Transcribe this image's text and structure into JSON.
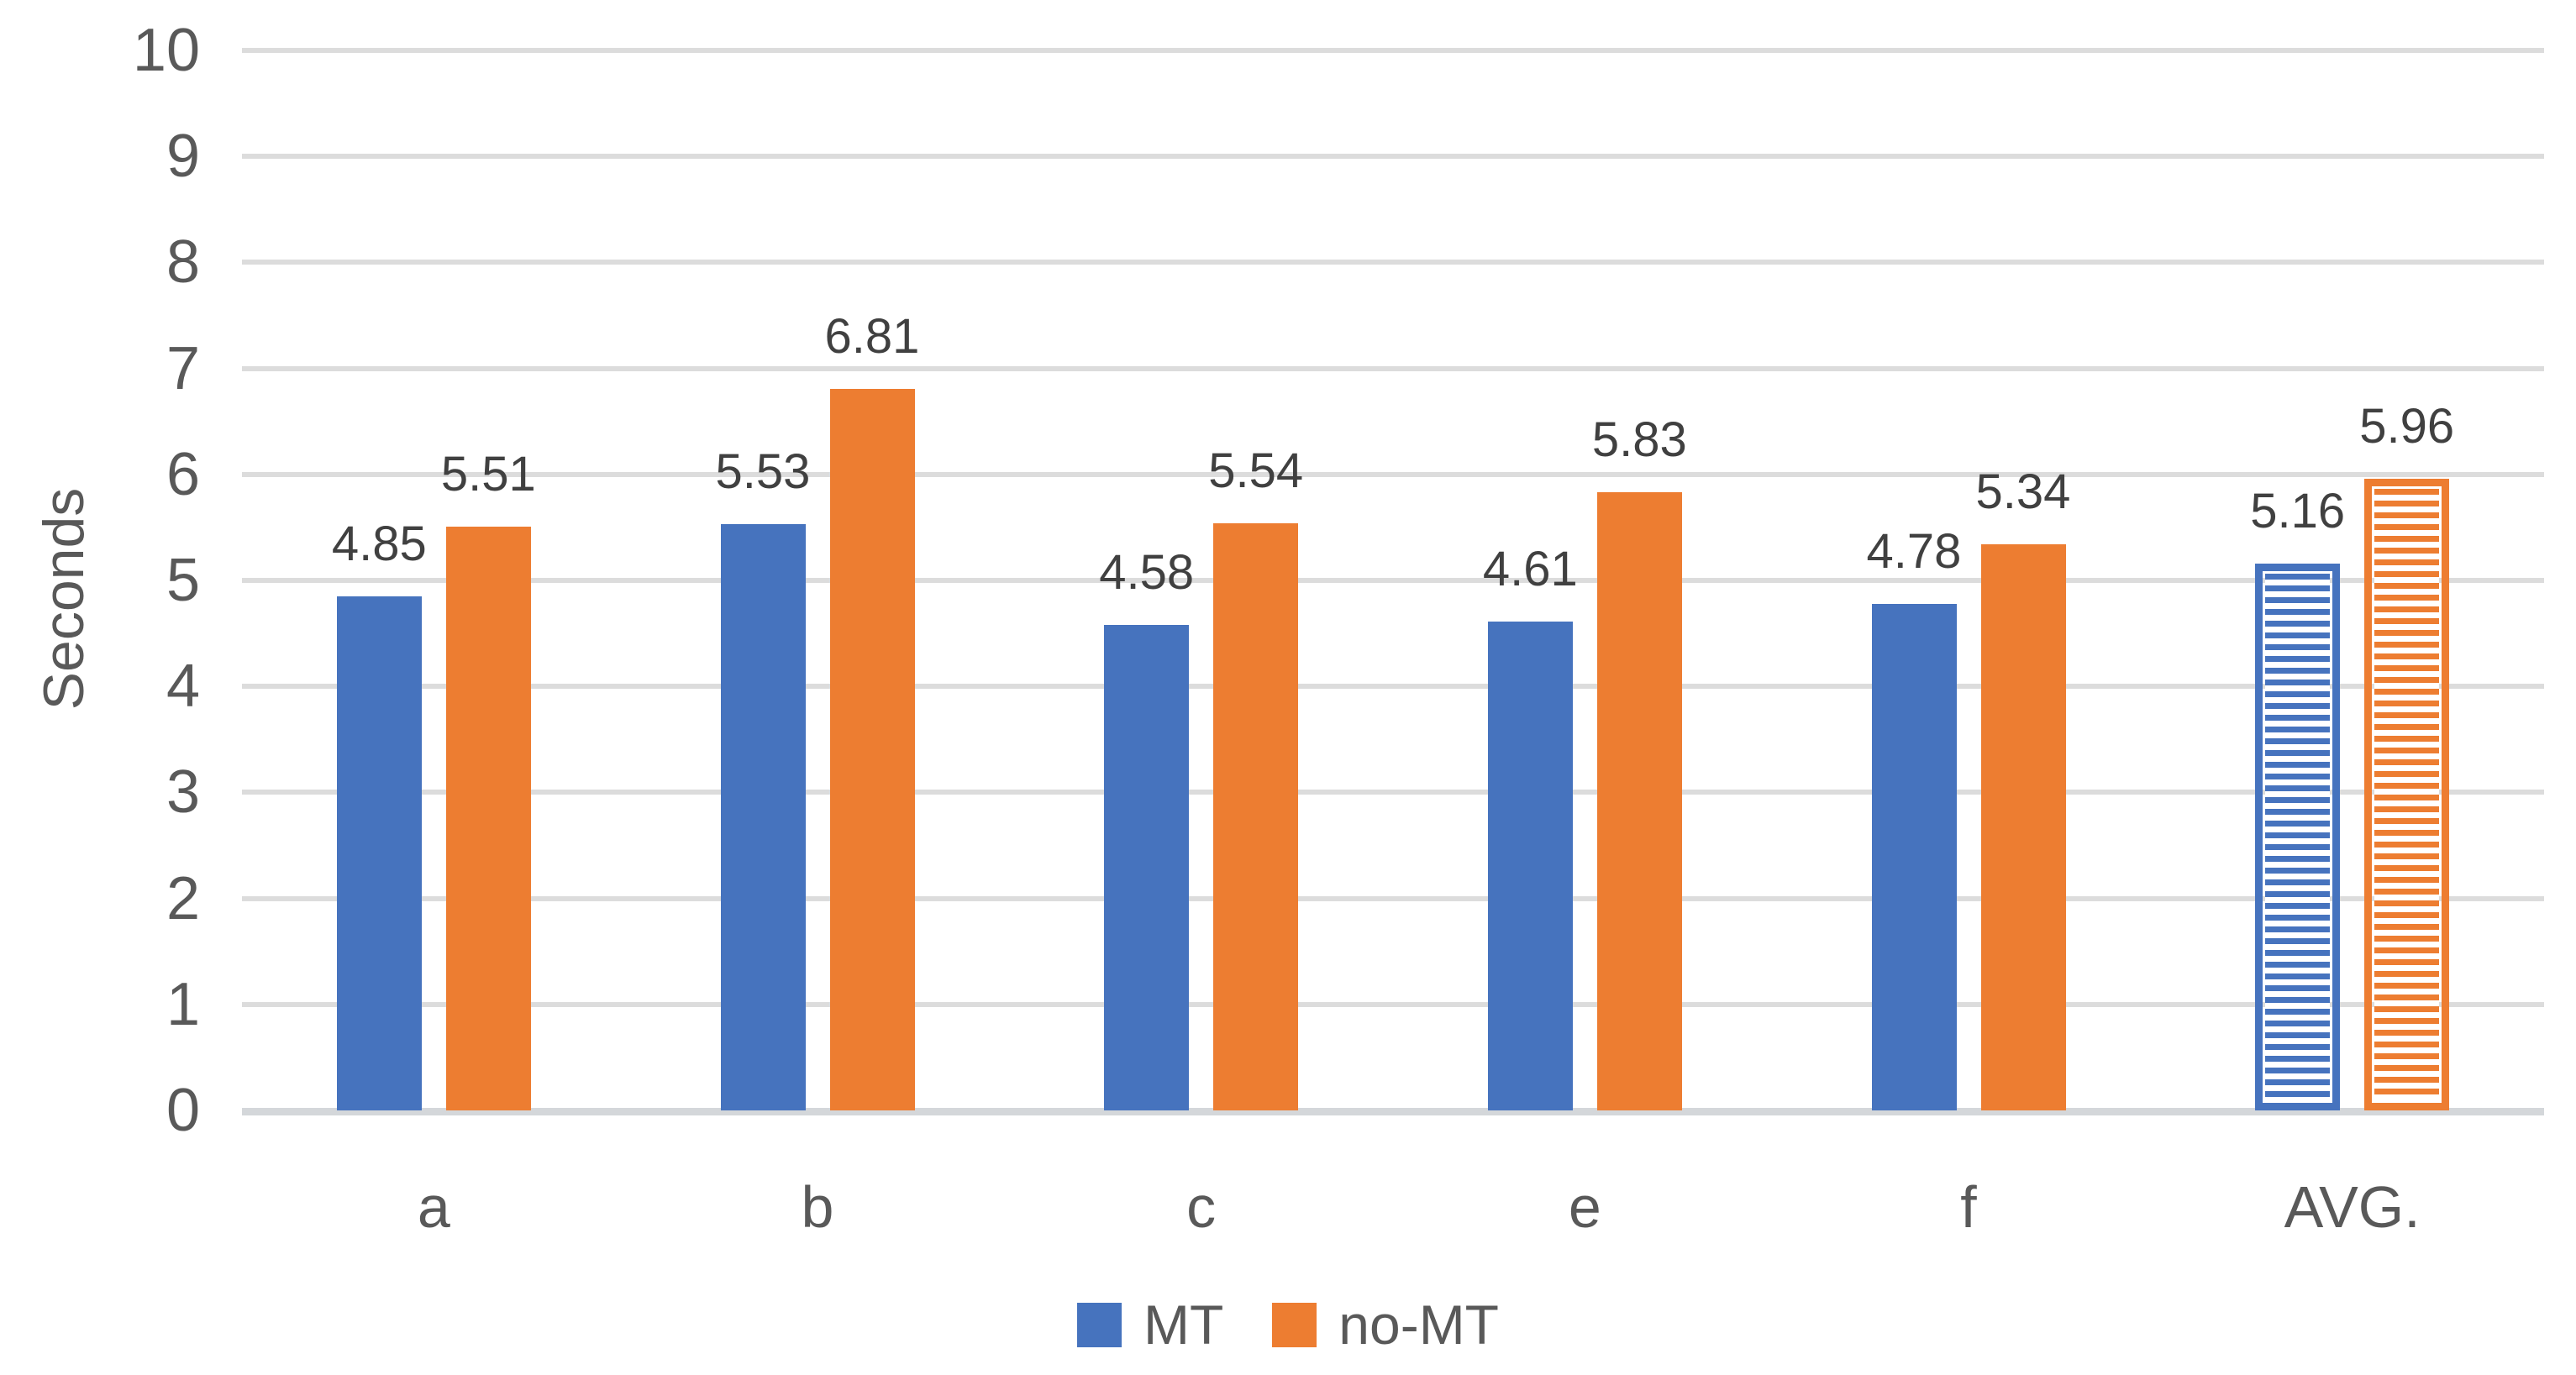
{
  "chart_data": {
    "type": "bar",
    "title": "",
    "ylabel": "Seconds",
    "xlabel": "",
    "categories": [
      "a",
      "b",
      "c",
      "e",
      "f",
      "AVG."
    ],
    "series": [
      {
        "name": "MT",
        "color": "#4673BE",
        "values": [
          4.85,
          5.53,
          4.58,
          4.61,
          4.78,
          5.16
        ],
        "labels": [
          "4.85",
          "5.53",
          "4.58",
          "4.61",
          "4.78",
          "5.16"
        ]
      },
      {
        "name": "no-MT",
        "color": "#ED7D31",
        "values": [
          5.51,
          6.81,
          5.54,
          5.83,
          5.34,
          5.96
        ],
        "labels": [
          "5.51",
          "6.81",
          "5.54",
          "5.83",
          "5.34",
          "5.96"
        ]
      }
    ],
    "hatched_category": "AVG.",
    "hatch_style": "horizontal-stripes",
    "ylim": [
      0,
      10
    ],
    "ytick_step": 1,
    "yticks": [
      "0",
      "1",
      "2",
      "3",
      "4",
      "5",
      "6",
      "7",
      "8",
      "9",
      "10"
    ],
    "grid": true,
    "gridline_color": "#dcdcdc",
    "axis_line_color": "#d4d7da",
    "value_label_color": "#404040",
    "axis_text_color": "#595959",
    "legend_position": "bottom",
    "legend_entries": [
      "MT",
      "no-MT"
    ]
  }
}
